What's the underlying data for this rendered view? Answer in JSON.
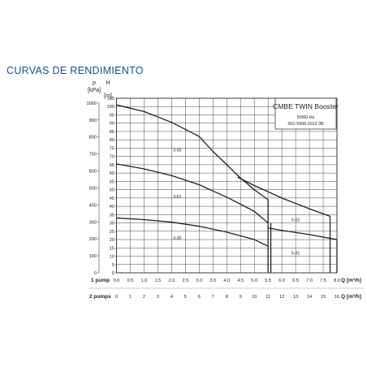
{
  "page": {
    "title": "CURVAS DE RENDIMIENTO"
  },
  "chart_data": {
    "type": "line",
    "legend": {
      "title": "CMBE TWIN Booster",
      "line2": "50/60 Hz",
      "line3": "ISO 9906:2012 3B",
      "placement": "top-right"
    },
    "axes": {
      "p_label": "p",
      "p_unit": "[kPa]",
      "h_label": "H",
      "h_unit": "[m]",
      "row1_label": "1 pump",
      "row2_label": "2 pumps",
      "q_label_1": "Q [m³/h]",
      "q_label_2": "Q [m³/h]"
    },
    "grid": true,
    "xlim": [
      0,
      8.0
    ],
    "ylim_m": [
      0,
      105
    ],
    "x_ticks_1pump": [
      "0.0",
      "0.5",
      "1.0",
      "1.5",
      "2.0",
      "2.5",
      "3.0",
      "3.5",
      "4.0",
      "4.5",
      "5.0",
      "5.5",
      "6.0",
      "6.5",
      "7.0",
      "7.5",
      "8.0"
    ],
    "x_ticks_2pumps": [
      "0",
      "1",
      "2",
      "3",
      "4",
      "5",
      "6",
      "7",
      "8",
      "9",
      "10",
      "11",
      "12",
      "13",
      "14",
      "15",
      "16"
    ],
    "h_ticks": [
      "0",
      "5",
      "10",
      "15",
      "20",
      "25",
      "30",
      "35",
      "40",
      "45",
      "50",
      "55",
      "60",
      "65",
      "70",
      "75",
      "80",
      "85",
      "90",
      "95",
      "100",
      "105"
    ],
    "p_ticks": [
      "0",
      "100",
      "200",
      "300",
      "400",
      "500",
      "600",
      "700",
      "800",
      "900",
      "1000"
    ],
    "series": [
      {
        "name": "3-93",
        "x": [
          0.0,
          1.0,
          2.0,
          3.0,
          3.5,
          4.0,
          4.5,
          5.0,
          5.5
        ],
        "y": [
          101,
          97,
          90.5,
          82,
          73,
          65,
          57,
          50,
          44
        ]
      },
      {
        "name": "3-62",
        "x": [
          0.0,
          1.0,
          2.0,
          3.0,
          4.0,
          5.0,
          5.5
        ],
        "y": [
          65.5,
          62.5,
          58.5,
          53,
          45.5,
          37,
          30
        ]
      },
      {
        "name": "3-30",
        "x": [
          0.0,
          1.0,
          2.0,
          3.0,
          4.0,
          5.0,
          5.5
        ],
        "y": [
          33,
          32,
          30.5,
          28,
          24.5,
          20,
          16
        ]
      },
      {
        "name": "5-62",
        "x": [
          4.4,
          5.0,
          6.0,
          7.0,
          7.75
        ],
        "y": [
          57.5,
          52.5,
          45,
          38.5,
          34
        ]
      },
      {
        "name": "5-31",
        "x": [
          5.5,
          6.0,
          7.0,
          8.0
        ],
        "y": [
          27,
          25.5,
          23,
          20
        ]
      }
    ],
    "curve_labels": [
      {
        "text": "3-93",
        "x": 2.05,
        "y": 73
      },
      {
        "text": "3-62",
        "x": 2.05,
        "y": 45
      },
      {
        "text": "3-30",
        "x": 2.05,
        "y": 20
      },
      {
        "text": "5-62",
        "x": 6.35,
        "y": 31
      },
      {
        "text": "5-31",
        "x": 6.35,
        "y": 11
      }
    ],
    "flow_limits": [
      {
        "x": 5.5,
        "y_top": 44
      },
      {
        "x": 5.6,
        "y_top": 30
      },
      {
        "x": 7.75,
        "y_top": 34
      },
      {
        "x": 8.0,
        "y_top": 20
      }
    ]
  }
}
